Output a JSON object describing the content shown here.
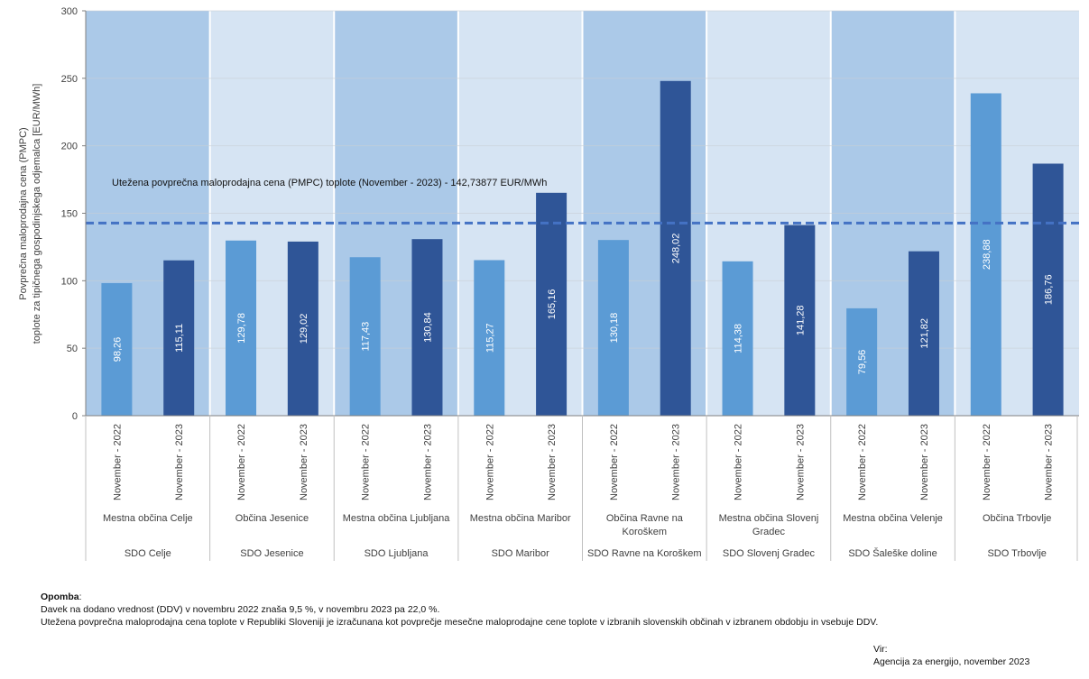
{
  "chart_data": {
    "type": "bar",
    "ylabel_line1": "Povprečna maloprodajna cena (PMPC)",
    "ylabel_line2": "toplote za tipičnega gospodinjskega odjemalca  [EUR/MWh]",
    "ylim": [
      0,
      300
    ],
    "yticks": [
      "0",
      "50",
      "100",
      "150",
      "200",
      "250",
      "300"
    ],
    "series_labels": [
      "November - 2022",
      "November - 2023"
    ],
    "groups": [
      {
        "sdo": "SDO Celje",
        "obcina": [
          "Mestna občina Celje"
        ],
        "values": [
          98.26,
          115.11
        ],
        "labels": [
          "98,26",
          "115,11"
        ]
      },
      {
        "sdo": "SDO Jesenice",
        "obcina": [
          "Občina Jesenice"
        ],
        "values": [
          129.78,
          129.02
        ],
        "labels": [
          "129,78",
          "129,02"
        ]
      },
      {
        "sdo": "SDO Ljubljana",
        "obcina": [
          "Mestna občina Ljubljana"
        ],
        "values": [
          117.43,
          130.84
        ],
        "labels": [
          "117,43",
          "130,84"
        ]
      },
      {
        "sdo": "SDO Maribor",
        "obcina": [
          "Mestna občina Maribor"
        ],
        "values": [
          115.27,
          165.16
        ],
        "labels": [
          "115,27",
          "165,16"
        ]
      },
      {
        "sdo": "SDO Ravne na Koroškem",
        "obcina": [
          "Občina Ravne na",
          "Koroškem"
        ],
        "values": [
          130.18,
          248.02
        ],
        "labels": [
          "130,18",
          "248,02"
        ]
      },
      {
        "sdo": "SDO Slovenj Gradec",
        "obcina": [
          "Mestna občina Slovenj",
          "Gradec"
        ],
        "values": [
          114.38,
          141.28
        ],
        "labels": [
          "114,38",
          "141,28"
        ]
      },
      {
        "sdo": "SDO Šaleške doline",
        "obcina": [
          "Mestna občina Velenje"
        ],
        "values": [
          79.56,
          121.82
        ],
        "labels": [
          "79,56",
          "121,82"
        ]
      },
      {
        "sdo": "SDO Trbovlje",
        "obcina": [
          "Občina Trbovlje"
        ],
        "values": [
          238.88,
          186.76
        ],
        "labels": [
          "238,88",
          "186,76"
        ]
      }
    ],
    "average_line": {
      "value": 142.73877,
      "label": "Utežena povprečna maloprodajna cena (PMPC) toplote (November - 2023) - 142,73877  EUR/MWh"
    },
    "colors": {
      "bar_2022": "#5B9BD5",
      "bar_2023": "#2F5597",
      "band_dark": "#ABC9E8",
      "band_light": "#D6E4F3",
      "avg_line": "#4472C4"
    }
  },
  "notes": {
    "title": "Opomba",
    "title_suffix": ":",
    "line1": "Davek na dodano vrednost (DDV) v novembru 2022 znaša 9,5 %, v novembru 2023 pa 22,0 %.",
    "line2": "Utežena povprečna maloprodajna cena toplote v Republiki Sloveniji je izračunana kot povprečje mesečne maloprodajne cene toplote v izbranih slovenskih občinah v izbranem obdobju in vsebuje DDV."
  },
  "source": {
    "line1": "Vir:",
    "line2": "Agencija za energijo, november 2023"
  }
}
